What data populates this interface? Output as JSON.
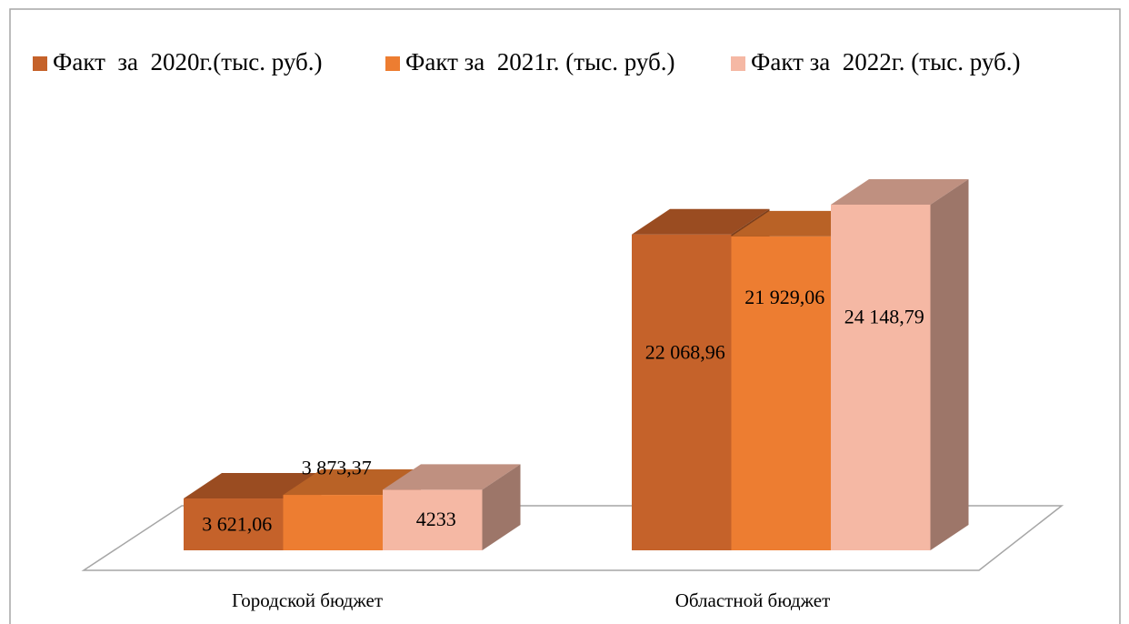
{
  "chart_data": {
    "type": "bar3d",
    "categories": [
      "Городской бюджет",
      "Областной бюджет"
    ],
    "series": [
      {
        "name": "Факт  за  2020г.(тыс. руб.)",
        "color": "#c5622a",
        "values": [
          3621.06,
          22068.96
        ],
        "value_labels": [
          "3 621,06",
          "22 068,96"
        ]
      },
      {
        "name": "Факт за  2021г. (тыс. руб.)",
        "color": "#ed7d31",
        "values": [
          3873.37,
          21929.06
        ],
        "value_labels": [
          "3 873,37",
          "21 929,06"
        ]
      },
      {
        "name": "Факт за  2022г. (тыс. руб.)",
        "color": "#f5b8a4",
        "values": [
          4233,
          24148.79
        ],
        "value_labels": [
          "4233",
          "24 148,79"
        ]
      }
    ],
    "legend": "top"
  }
}
